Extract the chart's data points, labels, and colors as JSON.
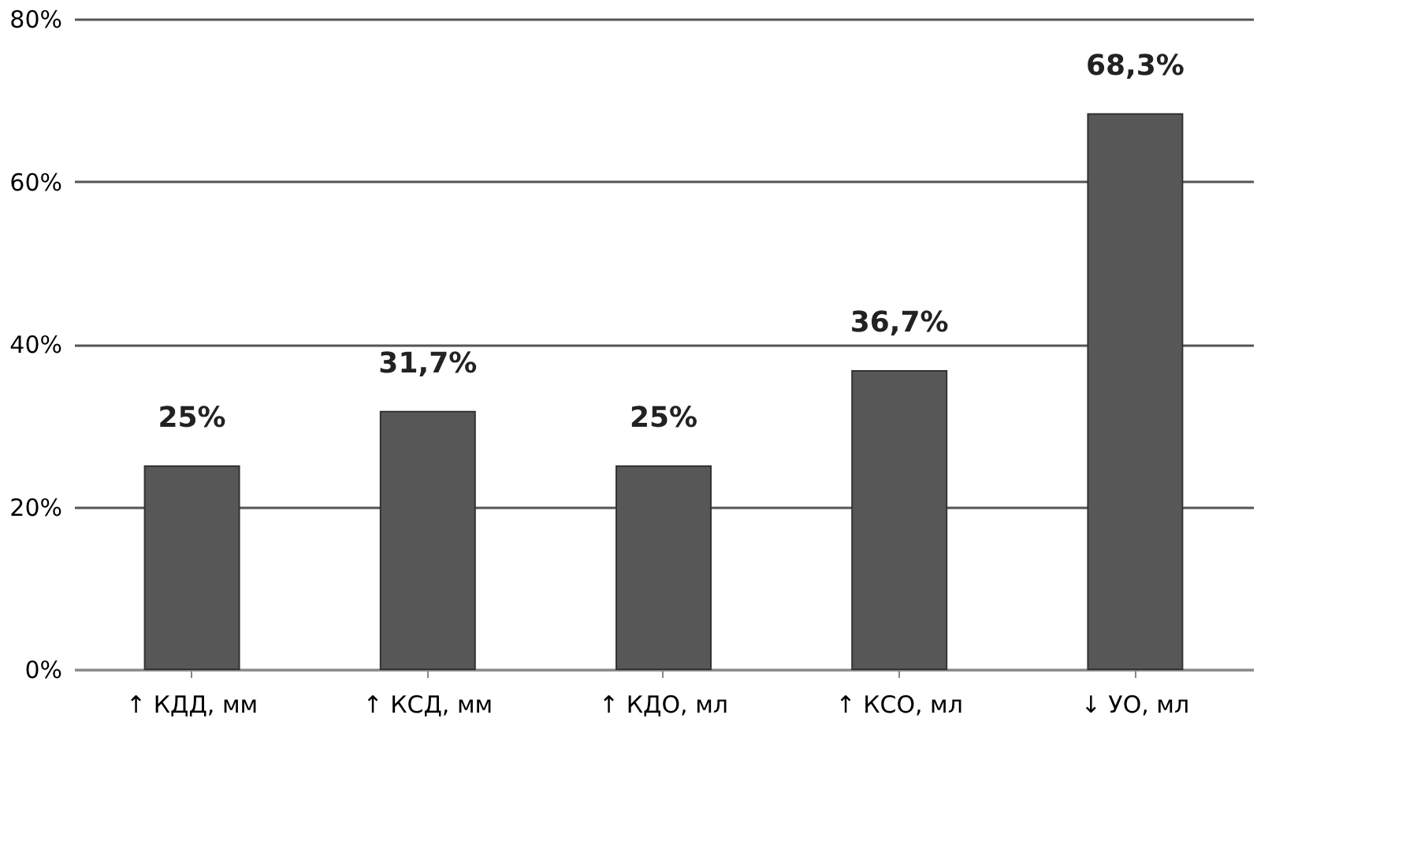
{
  "chart_data": {
    "type": "bar",
    "categories": [
      "↑ КДД, мм",
      "↑ КСД, мм",
      "↑ КДО, мл",
      "↑ КСО, мл",
      "↓ УО, мл"
    ],
    "values": [
      25,
      31.7,
      25,
      36.7,
      68.3
    ],
    "value_labels": [
      "25%",
      "31,7%",
      "25%",
      "36,7%",
      "68,3%"
    ],
    "color": "#575757",
    "ylim": [
      0,
      80
    ],
    "yticks": [
      {
        "value": 0,
        "label": "0%"
      },
      {
        "value": 20,
        "label": "20%"
      },
      {
        "value": 40,
        "label": "40%"
      },
      {
        "value": 60,
        "label": "60%"
      },
      {
        "value": 80,
        "label": "80%"
      }
    ],
    "grid": "y"
  }
}
